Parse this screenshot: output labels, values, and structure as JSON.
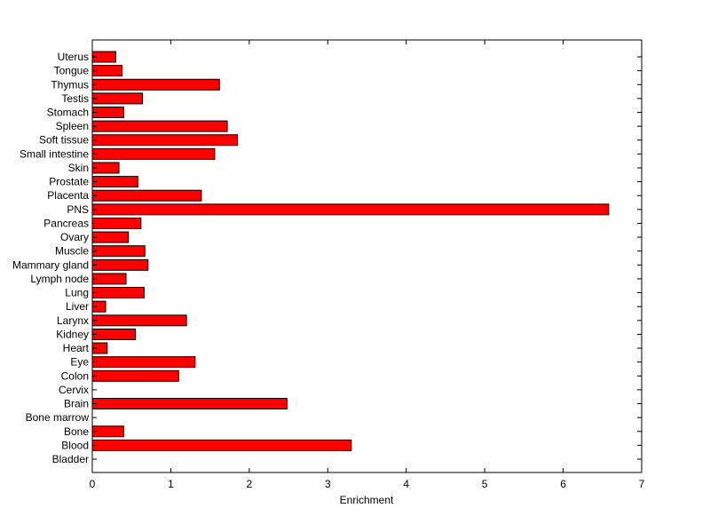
{
  "chart_data": {
    "type": "bar",
    "orientation": "horizontal",
    "categories": [
      "Bladder",
      "Blood",
      "Bone",
      "Bone marrow",
      "Brain",
      "Cervix",
      "Colon",
      "Eye",
      "Heart",
      "Kidney",
      "Larynx",
      "Liver",
      "Lung",
      "Lymph node",
      "Mammary gland",
      "Muscle",
      "Ovary",
      "Pancreas",
      "PNS",
      "Placenta",
      "Prostate",
      "Skin",
      "Small intestine",
      "Soft tissue",
      "Spleen",
      "Stomach",
      "Testis",
      "Thymus",
      "Tongue",
      "Uterus"
    ],
    "values": [
      0,
      3.3,
      0.4,
      0,
      2.48,
      0,
      1.1,
      1.31,
      0.19,
      0.55,
      1.2,
      0.17,
      0.66,
      0.43,
      0.71,
      0.67,
      0.46,
      0.62,
      6.58,
      1.39,
      0.58,
      0.34,
      1.56,
      1.85,
      1.72,
      0.4,
      0.64,
      1.62,
      0.38,
      0.3
    ],
    "title": "",
    "xlabel": "Enrichment",
    "ylabel": "",
    "xlim": [
      0,
      7
    ],
    "xticks": [
      "0",
      "1",
      "2",
      "3",
      "4",
      "5",
      "6",
      "7"
    ],
    "grid": false,
    "colors": {
      "bar_fill": "#ff0000",
      "bar_stroke": "#000000",
      "axis": "#000000",
      "background": "#ffffff"
    }
  }
}
